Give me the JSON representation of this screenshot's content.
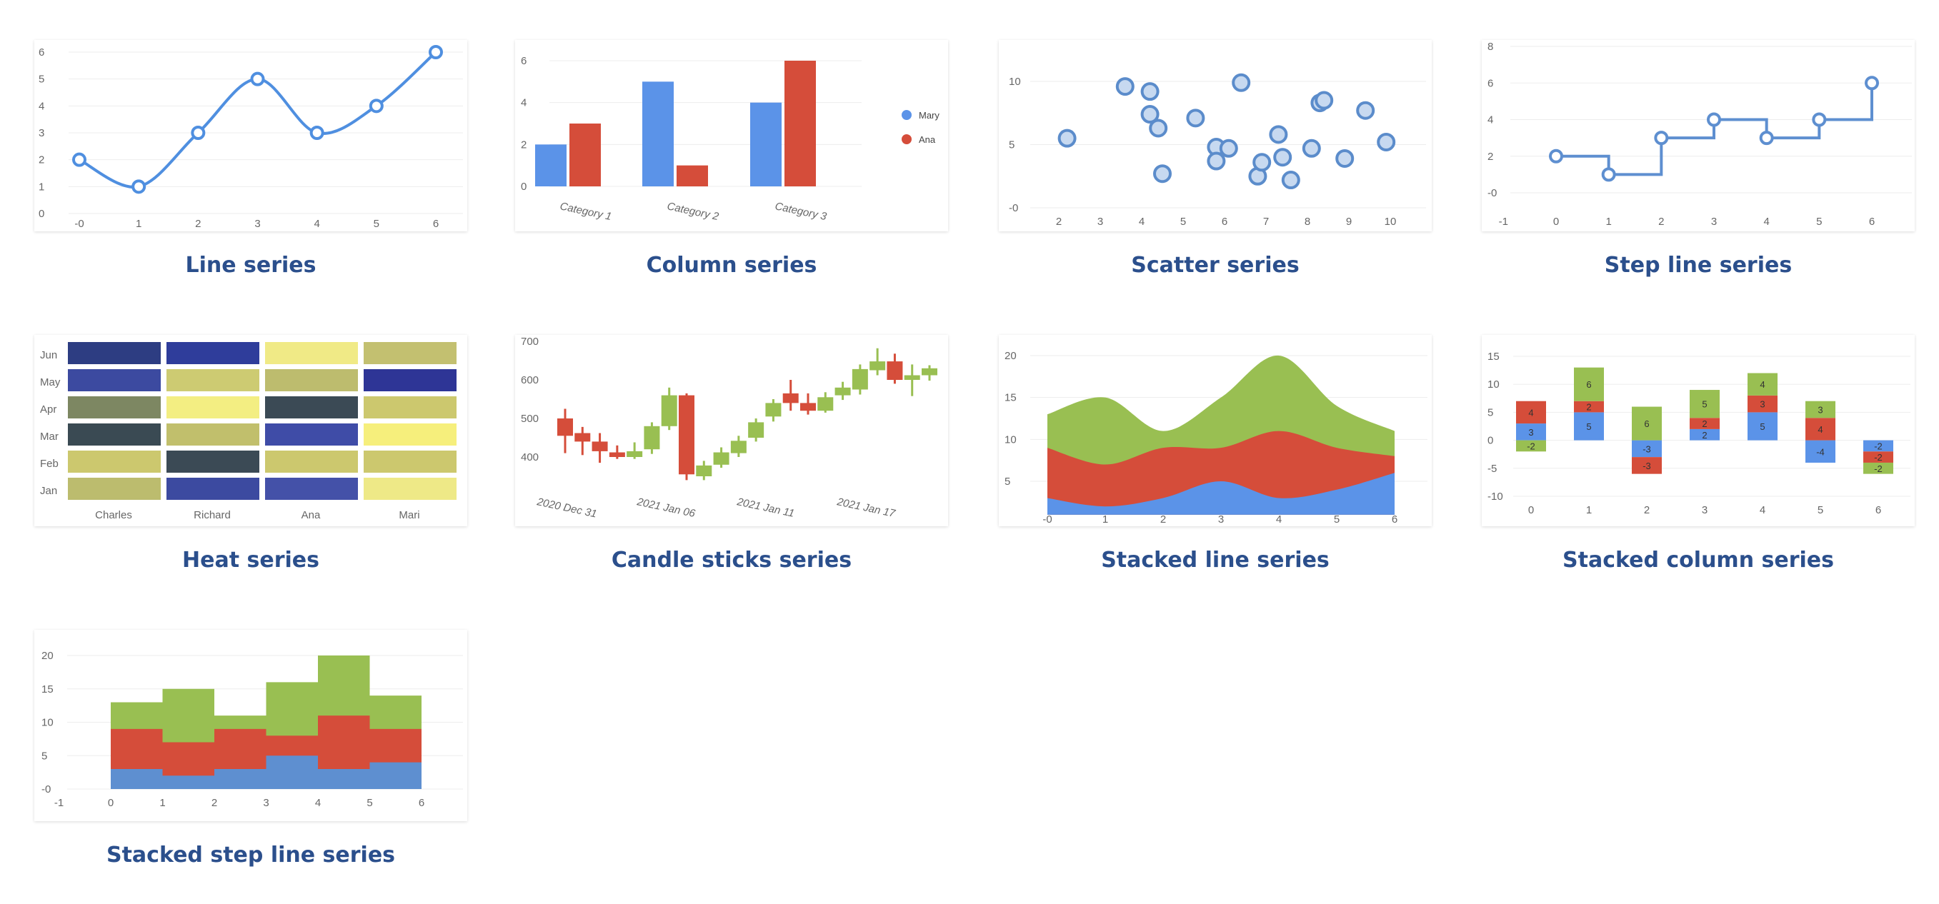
{
  "colors": {
    "blue": "#5B93E8",
    "red": "#D54D3A",
    "green": "#99BF52",
    "line": "#4F8FE0",
    "step": "#5E8FD0",
    "marker_fill": "#C7D9F0",
    "grid": "#EDEDED",
    "title": "#2B4F8C"
  },
  "chart_data": [
    {
      "id": "line",
      "type": "line",
      "title": "Line series",
      "x": [
        0,
        1,
        2,
        3,
        4,
        5,
        6
      ],
      "x_tick_labels": [
        "-0",
        "1",
        "2",
        "3",
        "4",
        "5",
        "6"
      ],
      "values": [
        2,
        1,
        3,
        5,
        3,
        4,
        6
      ],
      "y_ticks": [
        "0",
        "1",
        "2",
        "3",
        "4",
        "5",
        "6"
      ],
      "ylim": [
        0,
        6
      ],
      "xlim": [
        0,
        6
      ],
      "grid": true
    },
    {
      "id": "column",
      "type": "bar",
      "title": "Column series",
      "categories": [
        "Category 1",
        "Category 2",
        "Category 3"
      ],
      "series": [
        {
          "name": "Mary",
          "values": [
            2,
            5,
            4
          ]
        },
        {
          "name": "Ana",
          "values": [
            3,
            1,
            6
          ]
        }
      ],
      "y_ticks": [
        "0",
        "2",
        "4",
        "6"
      ],
      "ylim": [
        0,
        6
      ],
      "legend": "right",
      "grid": true
    },
    {
      "id": "scatter",
      "type": "scatter",
      "title": "Scatter series",
      "points": [
        [
          2.2,
          5.5
        ],
        [
          3.6,
          9.6
        ],
        [
          4.2,
          9.2
        ],
        [
          4.2,
          7.4
        ],
        [
          4.4,
          6.3
        ],
        [
          4.5,
          2.7
        ],
        [
          5.3,
          7.1
        ],
        [
          5.8,
          4.8
        ],
        [
          5.8,
          3.7
        ],
        [
          6.1,
          4.7
        ],
        [
          6.4,
          9.9
        ],
        [
          6.8,
          2.5
        ],
        [
          6.9,
          3.6
        ],
        [
          7.3,
          5.8
        ],
        [
          7.4,
          4.0
        ],
        [
          7.6,
          2.2
        ],
        [
          8.1,
          4.7
        ],
        [
          8.3,
          8.3
        ],
        [
          8.4,
          8.5
        ],
        [
          8.9,
          3.9
        ],
        [
          9.4,
          7.7
        ],
        [
          9.9,
          5.2
        ]
      ],
      "x_ticks": [
        "2",
        "3",
        "4",
        "5",
        "6",
        "7",
        "8",
        "9",
        "10"
      ],
      "y_ticks": [
        "-0",
        "5",
        "10"
      ],
      "xlim": [
        1.5,
        10.5
      ],
      "ylim": [
        -1.5,
        11.5
      ],
      "grid": true
    },
    {
      "id": "stepline",
      "type": "line",
      "title": "Step line series",
      "x": [
        0,
        1,
        2,
        3,
        4,
        5,
        6
      ],
      "values": [
        2,
        1,
        3,
        4,
        3,
        4,
        6
      ],
      "x_ticks": [
        "-1",
        "0",
        "1",
        "2",
        "3",
        "4",
        "5",
        "6"
      ],
      "y_ticks": [
        "-0",
        "2",
        "4",
        "6",
        "8"
      ],
      "xlim": [
        -1,
        6.6
      ],
      "ylim": [
        -0.8,
        8
      ],
      "grid": true
    },
    {
      "id": "heat",
      "type": "heatmap",
      "title": "Heat series",
      "x_categories": [
        "Charles",
        "Richard",
        "Ana",
        "Mari"
      ],
      "y_categories": [
        "Jun",
        "May",
        "Apr",
        "Mar",
        "Feb",
        "Jan"
      ],
      "cell_colors": [
        [
          "#2D3D82",
          "#2F3D9B",
          "#F0EA86",
          "#C3C070"
        ],
        [
          "#3C4AA0",
          "#CDCB72",
          "#BDBC6E",
          "#2E3596"
        ],
        [
          "#7D8762",
          "#F3EE82",
          "#3B4A55",
          "#CCC86E"
        ],
        [
          "#3A4A53",
          "#C1BF6C",
          "#3F4CA7",
          "#F6EF7C"
        ],
        [
          "#CCC86E",
          "#3B4A55",
          "#CCC86E",
          "#CCC86E"
        ],
        [
          "#BCBC6E",
          "#3C4AA0",
          "#4451A8",
          "#EEE987"
        ]
      ]
    },
    {
      "id": "candles",
      "type": "candlestick",
      "title": "Candle sticks series",
      "x_tick_labels": [
        "2020 Dec 31",
        "2021 Jan 06",
        "2021 Jan 11",
        "2021 Jan 17"
      ],
      "y_ticks": [
        "400",
        "500",
        "600",
        "700"
      ],
      "ylim": [
        310,
        720
      ],
      "candles": [
        [
          500,
          455,
          525,
          410
        ],
        [
          462,
          440,
          478,
          405
        ],
        [
          440,
          415,
          462,
          385
        ],
        [
          412,
          400,
          430,
          395
        ],
        [
          400,
          415,
          438,
          395
        ],
        [
          420,
          480,
          490,
          408
        ],
        [
          480,
          560,
          580,
          470
        ],
        [
          560,
          355,
          565,
          340
        ],
        [
          350,
          378,
          390,
          340
        ],
        [
          380,
          412,
          425,
          372
        ],
        [
          410,
          442,
          455,
          400
        ],
        [
          450,
          490,
          500,
          440
        ],
        [
          505,
          540,
          550,
          492
        ],
        [
          565,
          540,
          600,
          520
        ],
        [
          540,
          520,
          565,
          510
        ],
        [
          520,
          555,
          568,
          515
        ],
        [
          560,
          580,
          595,
          548
        ],
        [
          575,
          628,
          640,
          562
        ],
        [
          625,
          648,
          682,
          612
        ],
        [
          648,
          600,
          668,
          590
        ],
        [
          600,
          612,
          640,
          558
        ],
        [
          612,
          630,
          638,
          598
        ]
      ]
    },
    {
      "id": "stackedline",
      "type": "area",
      "title": "Stacked line series",
      "x": [
        0,
        1,
        2,
        3,
        4,
        5,
        6
      ],
      "x_tick_labels": [
        "-0",
        "1",
        "2",
        "3",
        "4",
        "5",
        "6"
      ],
      "series": [
        {
          "name": "",
          "values": [
            3,
            2,
            3,
            5,
            3,
            4,
            6
          ]
        },
        {
          "name": "",
          "values": [
            6,
            5,
            6,
            4,
            8,
            5,
            2
          ]
        },
        {
          "name": "",
          "values": [
            4,
            8,
            2,
            6,
            9,
            5,
            3
          ]
        }
      ],
      "y_ticks": [
        "5",
        "10",
        "15",
        "20"
      ],
      "ylim": [
        1,
        21
      ],
      "grid": true
    },
    {
      "id": "stackedcolumn",
      "type": "bar",
      "title": "Stacked column series",
      "categories": [
        "0",
        "1",
        "2",
        "3",
        "4",
        "5",
        "6"
      ],
      "series": [
        {
          "name": "",
          "values": [
            3,
            5,
            -3,
            2,
            5,
            -4,
            -2
          ]
        },
        {
          "name": "",
          "values": [
            4,
            2,
            -3,
            2,
            3,
            4,
            -2
          ]
        },
        {
          "name": "",
          "values": [
            -2,
            6,
            6,
            5,
            4,
            3,
            -2
          ]
        }
      ],
      "y_ticks": [
        "-10",
        "-5",
        "0",
        "5",
        "10",
        "15"
      ],
      "ylim": [
        -10,
        15
      ],
      "grid": true
    },
    {
      "id": "stackedstep",
      "type": "area",
      "title": "Stacked step line series",
      "x": [
        0,
        1,
        2,
        3,
        4,
        5,
        6
      ],
      "x_ticks": [
        "-1",
        "0",
        "1",
        "2",
        "3",
        "4",
        "5",
        "6"
      ],
      "series": [
        {
          "name": "",
          "values": [
            3,
            2,
            3,
            5,
            3,
            4,
            4
          ]
        },
        {
          "name": "",
          "values": [
            6,
            5,
            6,
            3,
            8,
            5,
            5
          ]
        },
        {
          "name": "",
          "values": [
            4,
            8,
            2,
            8,
            9,
            5,
            5
          ]
        }
      ],
      "y_ticks": [
        "-0",
        "5",
        "10",
        "15",
        "20"
      ],
      "xlim": [
        -1,
        6.1
      ],
      "ylim": [
        -1,
        21
      ],
      "grid": true
    }
  ]
}
